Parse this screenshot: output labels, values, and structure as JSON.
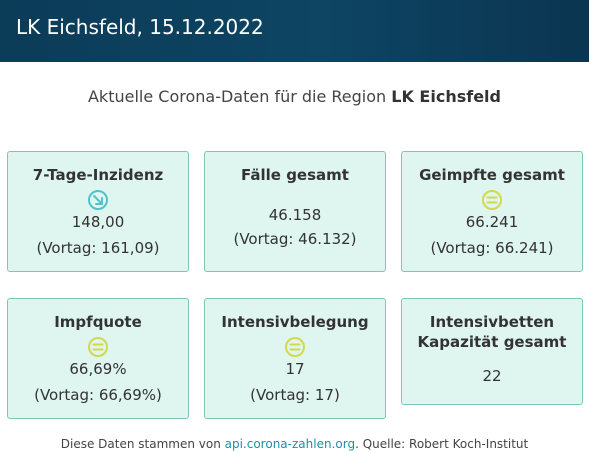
{
  "header": {
    "title": "LK Eichsfeld, 15.12.2022"
  },
  "subtitle": {
    "prefix": "Aktuelle Corona-Daten für die Region ",
    "region": "LK Eichsfeld"
  },
  "cards": [
    {
      "title": "7-Tage-Inzidenz",
      "value": "148,00",
      "previous": "(Vortag: 161,09)",
      "trend_icon": "arrow-down-right-icon",
      "trend_color": "#4fc3c9"
    },
    {
      "title": "Fälle gesamt",
      "value": "46.158",
      "previous": "(Vortag: 46.132)"
    },
    {
      "title": "Geimpfte gesamt",
      "value": "66.241",
      "previous": "(Vortag: 66.241)",
      "trend_icon": "equal-icon",
      "trend_color": "#d3d94a"
    },
    {
      "title": "Impfquote",
      "value": "66,69%",
      "previous": "(Vortag: 66,69%)",
      "trend_icon": "equal-icon",
      "trend_color": "#d3d94a"
    },
    {
      "title": "Intensivbelegung",
      "value": "17",
      "previous": "(Vortag: 17)",
      "trend_icon": "equal-icon",
      "trend_color": "#d3d94a"
    },
    {
      "title_line1": "Intensivbetten",
      "title_line2": "Kapazität gesamt",
      "value": "22"
    }
  ],
  "footer": {
    "prefix": "Diese Daten stammen von ",
    "link": "api.corona-zahlen.org",
    "suffix": ". Quelle: Robert Koch-Institut"
  },
  "colors": {
    "header_bg": "#0d4563",
    "card_bg": "#dff5f0",
    "card_border": "#7cc8b6",
    "link": "#1f8fa6"
  }
}
